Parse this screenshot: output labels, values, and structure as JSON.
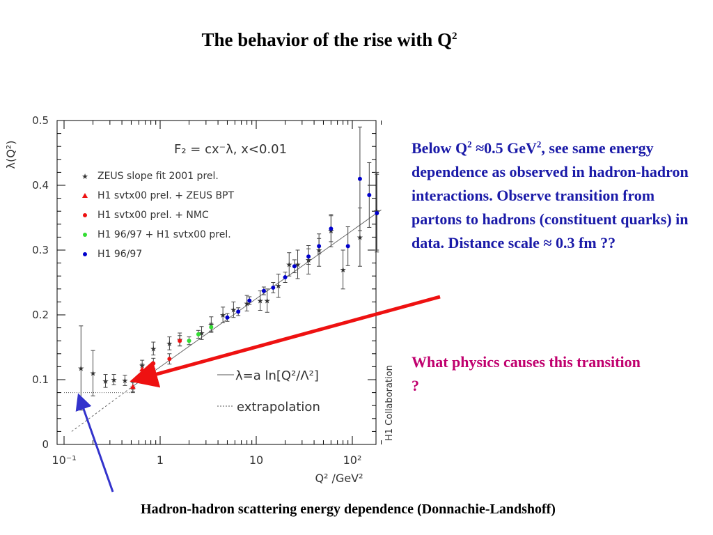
{
  "slide": {
    "title_prefix": "The behavior of the rise with Q",
    "title_sup": "2",
    "note_blue": {
      "part1": "Below Q",
      "sup1": "2",
      "part2": " ≈0.5 GeV",
      "sup2": "2",
      "part3": ", see same energy dependence as observed in hadron-hadron interactions. Observe transition from partons to hadrons (constituent quarks) in data. Distance scale ≈ 0.3 fm ??"
    },
    "note_pink": "What physics causes this transition ?",
    "caption": "Hadron-hadron scattering energy dependence (Donnachie-Landshoff)"
  },
  "chart_data": {
    "type": "scatter",
    "title": "F2 = cx^-λ,  x<0.01",
    "title_text": "F₂ = cx⁻λ,  x<0.01",
    "xlabel": "Q² /GeV²",
    "ylabel": "λ(Q²)",
    "x_scale": "log",
    "xlim": [
      0.1,
      250
    ],
    "ylim": [
      0,
      0.5
    ],
    "x_ticks": [
      {
        "value": 0.1,
        "label": "10⁻¹"
      },
      {
        "value": 1,
        "label": "1"
      },
      {
        "value": 10,
        "label": "10"
      },
      {
        "value": 100,
        "label": "10²"
      }
    ],
    "y_ticks": [
      {
        "value": 0,
        "label": "0"
      },
      {
        "value": 0.1,
        "label": "0.1"
      },
      {
        "value": 0.2,
        "label": "0.2"
      },
      {
        "value": 0.3,
        "label": "0.3"
      },
      {
        "value": 0.4,
        "label": "0.4"
      },
      {
        "value": 0.5,
        "label": "0.5"
      }
    ],
    "legend_position": "top-left",
    "legend_label": "H1 Collaboration",
    "series": [
      {
        "name": "ZEUS slope fit 2001 prel.",
        "marker": "star",
        "color": "#ff33ff",
        "points": [
          {
            "x": 0.15,
            "y": 0.118,
            "err": 0.065
          },
          {
            "x": 0.2,
            "y": 0.11,
            "err": 0.035
          },
          {
            "x": 0.27,
            "y": 0.098,
            "err": 0.01
          },
          {
            "x": 0.33,
            "y": 0.1,
            "err": 0.008
          },
          {
            "x": 0.43,
            "y": 0.099,
            "err": 0.008
          },
          {
            "x": 0.52,
            "y": 0.088,
            "err": 0.008
          },
          {
            "x": 0.65,
            "y": 0.122,
            "err": 0.008
          },
          {
            "x": 0.85,
            "y": 0.148,
            "err": 0.01
          },
          {
            "x": 1.25,
            "y": 0.156,
            "err": 0.01
          },
          {
            "x": 1.6,
            "y": 0.162,
            "err": 0.01
          },
          {
            "x": 2.7,
            "y": 0.172,
            "err": 0.01
          },
          {
            "x": 3.4,
            "y": 0.185,
            "err": 0.012
          },
          {
            "x": 4.5,
            "y": 0.2,
            "err": 0.012
          },
          {
            "x": 5.8,
            "y": 0.208,
            "err": 0.012
          },
          {
            "x": 8.0,
            "y": 0.218,
            "err": 0.012
          },
          {
            "x": 11,
            "y": 0.222,
            "err": 0.015
          },
          {
            "x": 13,
            "y": 0.222,
            "err": 0.018
          },
          {
            "x": 17,
            "y": 0.245,
            "err": 0.018
          },
          {
            "x": 22,
            "y": 0.278,
            "err": 0.018
          },
          {
            "x": 27,
            "y": 0.278,
            "err": 0.022
          },
          {
            "x": 35,
            "y": 0.285,
            "err": 0.022
          },
          {
            "x": 45,
            "y": 0.3,
            "err": 0.025
          },
          {
            "x": 60,
            "y": 0.33,
            "err": 0.025
          },
          {
            "x": 80,
            "y": 0.27,
            "err": 0.03
          },
          {
            "x": 120,
            "y": 0.32,
            "err": 0.045
          },
          {
            "x": 180,
            "y": 0.36,
            "err": 0.06
          }
        ]
      },
      {
        "name": "H1 svtx00 prel. + ZEUS BPT",
        "marker": "triangle",
        "color": "#ee1111",
        "points": [
          {
            "x": 0.52,
            "y": 0.089,
            "err": 0.007
          },
          {
            "x": 0.65,
            "y": 0.116,
            "err": 0.008
          }
        ]
      },
      {
        "name": "H1 svtx00 prel. + NMC",
        "marker": "circle",
        "color": "#ee1111",
        "points": [
          {
            "x": 0.85,
            "y": 0.125,
            "err": 0.008
          },
          {
            "x": 1.25,
            "y": 0.132,
            "err": 0.008
          },
          {
            "x": 1.6,
            "y": 0.16,
            "err": 0.008
          }
        ]
      },
      {
        "name": "H1 96/97 + H1 svtx00 prel.",
        "marker": "circle",
        "color": "#33dd33",
        "points": [
          {
            "x": 2.0,
            "y": 0.16,
            "err": 0.006
          },
          {
            "x": 2.5,
            "y": 0.17,
            "err": 0.006
          },
          {
            "x": 3.4,
            "y": 0.181,
            "err": 0.006
          }
        ]
      },
      {
        "name": "H1 96/97",
        "marker": "circle",
        "color": "#0000cc",
        "points": [
          {
            "x": 5.0,
            "y": 0.196,
            "err": 0.006
          },
          {
            "x": 6.5,
            "y": 0.205,
            "err": 0.006
          },
          {
            "x": 8.5,
            "y": 0.222,
            "err": 0.006
          },
          {
            "x": 12,
            "y": 0.237,
            "err": 0.006
          },
          {
            "x": 15,
            "y": 0.242,
            "err": 0.008
          },
          {
            "x": 20,
            "y": 0.258,
            "err": 0.008
          },
          {
            "x": 25,
            "y": 0.275,
            "err": 0.01
          },
          {
            "x": 35,
            "y": 0.29,
            "err": 0.012
          },
          {
            "x": 45,
            "y": 0.306,
            "err": 0.012
          },
          {
            "x": 60,
            "y": 0.333,
            "err": 0.02
          },
          {
            "x": 90,
            "y": 0.306,
            "err": 0.03
          },
          {
            "x": 120,
            "y": 0.41,
            "err": 0.08
          },
          {
            "x": 150,
            "y": 0.385,
            "err": 0.05
          },
          {
            "x": 180,
            "y": 0.357,
            "err": 0.06
          }
        ]
      }
    ],
    "fits": [
      {
        "name": "λ=a ln[Q²/Λ²]",
        "style": "solid",
        "x_range": [
          0.5,
          200
        ],
        "y_range": [
          0.088,
          0.362
        ]
      },
      {
        "name": "extrapolation",
        "style": "dashed",
        "x_range": [
          0.12,
          0.5
        ],
        "y_range": [
          0.02,
          0.088
        ]
      }
    ],
    "plateau": {
      "x_range": [
        0.1,
        0.5
      ],
      "y": 0.08
    },
    "legend_lines": {
      "fit": "λ=a ln[Q²/Λ²]",
      "extrapolation": "extrapolation"
    }
  },
  "arrows": {
    "red_color": "#ee1111",
    "blue_color": "#3333cc"
  }
}
